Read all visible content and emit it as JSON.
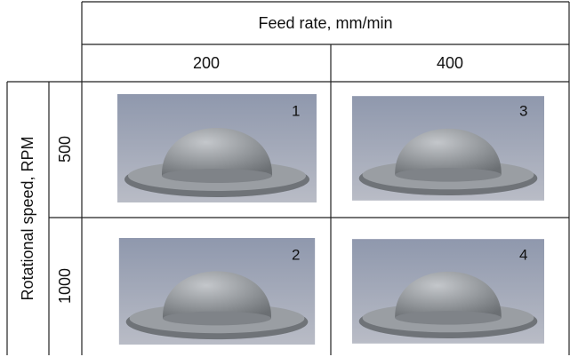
{
  "header": {
    "column_group": "Feed rate, mm/min",
    "columns": [
      "200",
      "400"
    ],
    "row_group": "Rotational speed, RPM",
    "rows": [
      "500",
      "1000"
    ]
  },
  "cells": [
    [
      "1",
      "3"
    ],
    [
      "2",
      "4"
    ]
  ]
}
